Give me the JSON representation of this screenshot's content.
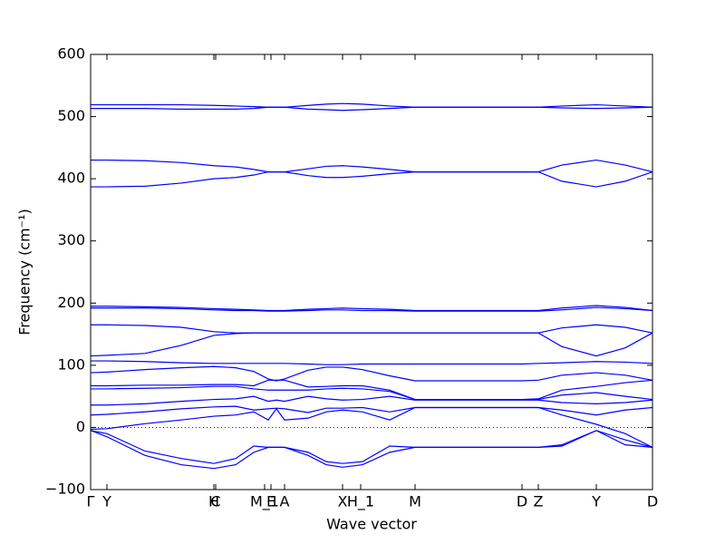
{
  "chart_data": {
    "type": "line",
    "xlabel": "Wave vector",
    "ylabel": "Frequency (cm⁻¹)",
    "color": "#0000ff",
    "hline": 0,
    "x": [
      0,
      18,
      60,
      100,
      136,
      160,
      180,
      196,
      205,
      214,
      240,
      260,
      278,
      300,
      330,
      358,
      420,
      476,
      494,
      520,
      558,
      590,
      620
    ],
    "xlim": [
      0,
      620
    ],
    "xticks": [
      {
        "value": 0,
        "label": "Γ"
      },
      {
        "value": 18,
        "label": "Y"
      },
      {
        "value": 136,
        "label": "H"
      },
      {
        "value": 138,
        "label": "C"
      },
      {
        "value": 192,
        "label": "M_1"
      },
      {
        "value": 199,
        "label": "E"
      },
      {
        "value": 214,
        "label": "A"
      },
      {
        "value": 278,
        "label": "X"
      },
      {
        "value": 298,
        "label": "H_1"
      },
      {
        "value": 358,
        "label": "M"
      },
      {
        "value": 476,
        "label": "D"
      },
      {
        "value": 494,
        "label": "Z"
      },
      {
        "value": 558,
        "label": "Y"
      },
      {
        "value": 620,
        "label": "D"
      }
    ],
    "ylim": [
      -100,
      600
    ],
    "yticks": [
      {
        "value": -100,
        "label": "−100"
      },
      0,
      100,
      200,
      300,
      400,
      500,
      600
    ],
    "series": [
      {
        "values": [
          519,
          519,
          519,
          519,
          518,
          517,
          516,
          515,
          515,
          515,
          518,
          520,
          521,
          520,
          517,
          515,
          515,
          515,
          515,
          517,
          519,
          517,
          515
        ]
      },
      {
        "values": [
          513,
          513,
          513,
          512,
          512,
          512,
          513,
          515,
          515,
          515,
          512,
          511,
          510,
          511,
          513,
          515,
          515,
          515,
          515,
          514,
          513,
          514,
          515
        ]
      },
      {
        "values": [
          430,
          430,
          429,
          426,
          421,
          419,
          415,
          411,
          411,
          411,
          416,
          420,
          421,
          419,
          415,
          411,
          411,
          411,
          411,
          422,
          430,
          422,
          411
        ]
      },
      {
        "values": [
          387,
          387,
          388,
          393,
          400,
          402,
          406,
          411,
          411,
          411,
          405,
          402,
          402,
          404,
          408,
          411,
          411,
          411,
          411,
          396,
          387,
          396,
          411
        ]
      },
      {
        "values": [
          195,
          195,
          194,
          193,
          191,
          190,
          189,
          188,
          188,
          188,
          190,
          191,
          192,
          191,
          190,
          188,
          188,
          188,
          188,
          192,
          196,
          193,
          188
        ]
      },
      {
        "values": [
          192,
          192,
          192,
          191,
          189,
          188,
          188,
          187,
          187,
          187,
          188,
          189,
          189,
          188,
          188,
          187,
          187,
          187,
          187,
          189,
          193,
          191,
          188
        ]
      },
      {
        "values": [
          165,
          165,
          164,
          161,
          154,
          152,
          152,
          152,
          152,
          152,
          152,
          152,
          152,
          152,
          152,
          152,
          152,
          152,
          152,
          160,
          165,
          161,
          152
        ]
      },
      {
        "values": [
          115,
          116,
          119,
          132,
          148,
          151,
          152,
          152,
          152,
          152,
          152,
          152,
          152,
          152,
          152,
          152,
          152,
          152,
          152,
          130,
          115,
          128,
          152
        ]
      },
      {
        "values": [
          107,
          107,
          106,
          104,
          103,
          103,
          103,
          103,
          103,
          103,
          102,
          101,
          101,
          102,
          102,
          102,
          102,
          102,
          103,
          104,
          106,
          105,
          103
        ]
      },
      {
        "values": [
          88,
          89,
          93,
          96,
          98,
          96,
          90,
          78,
          75,
          78,
          92,
          97,
          97,
          93,
          83,
          75,
          75,
          75,
          76,
          84,
          88,
          84,
          76
        ]
      },
      {
        "values": [
          67,
          67,
          68,
          68,
          69,
          69,
          67,
          76,
          76,
          76,
          65,
          66,
          67,
          67,
          60,
          45,
          45,
          45,
          46,
          60,
          66,
          72,
          76
        ]
      },
      {
        "values": [
          62,
          62,
          63,
          64,
          66,
          66,
          62,
          60,
          60,
          60,
          60,
          62,
          63,
          62,
          58,
          45,
          45,
          45,
          45,
          52,
          56,
          50,
          45
        ]
      },
      {
        "values": [
          36,
          36,
          38,
          42,
          45,
          46,
          50,
          42,
          44,
          42,
          50,
          46,
          44,
          45,
          50,
          44,
          44,
          44,
          44,
          40,
          38,
          40,
          44
        ]
      },
      {
        "values": [
          20,
          21,
          25,
          30,
          33,
          34,
          28,
          30,
          31,
          30,
          24,
          31,
          31,
          32,
          25,
          32,
          32,
          32,
          32,
          28,
          20,
          28,
          32
        ]
      },
      {
        "values": [
          -3,
          -2,
          6,
          12,
          18,
          20,
          25,
          12,
          30,
          12,
          15,
          25,
          28,
          25,
          12,
          32,
          32,
          32,
          32,
          20,
          5,
          -10,
          -32
        ]
      },
      {
        "values": [
          -5,
          -15,
          -45,
          -60,
          -66,
          -60,
          -40,
          -32,
          -32,
          -32,
          -45,
          -60,
          -64,
          -60,
          -40,
          -32,
          -32,
          -32,
          -32,
          -28,
          -5,
          -28,
          -32
        ]
      },
      {
        "values": [
          -5,
          -10,
          -38,
          -50,
          -58,
          -50,
          -30,
          -32,
          -32,
          -32,
          -40,
          -55,
          -58,
          -55,
          -30,
          -32,
          -32,
          -32,
          -32,
          -30,
          -5,
          -20,
          -32
        ]
      }
    ]
  }
}
